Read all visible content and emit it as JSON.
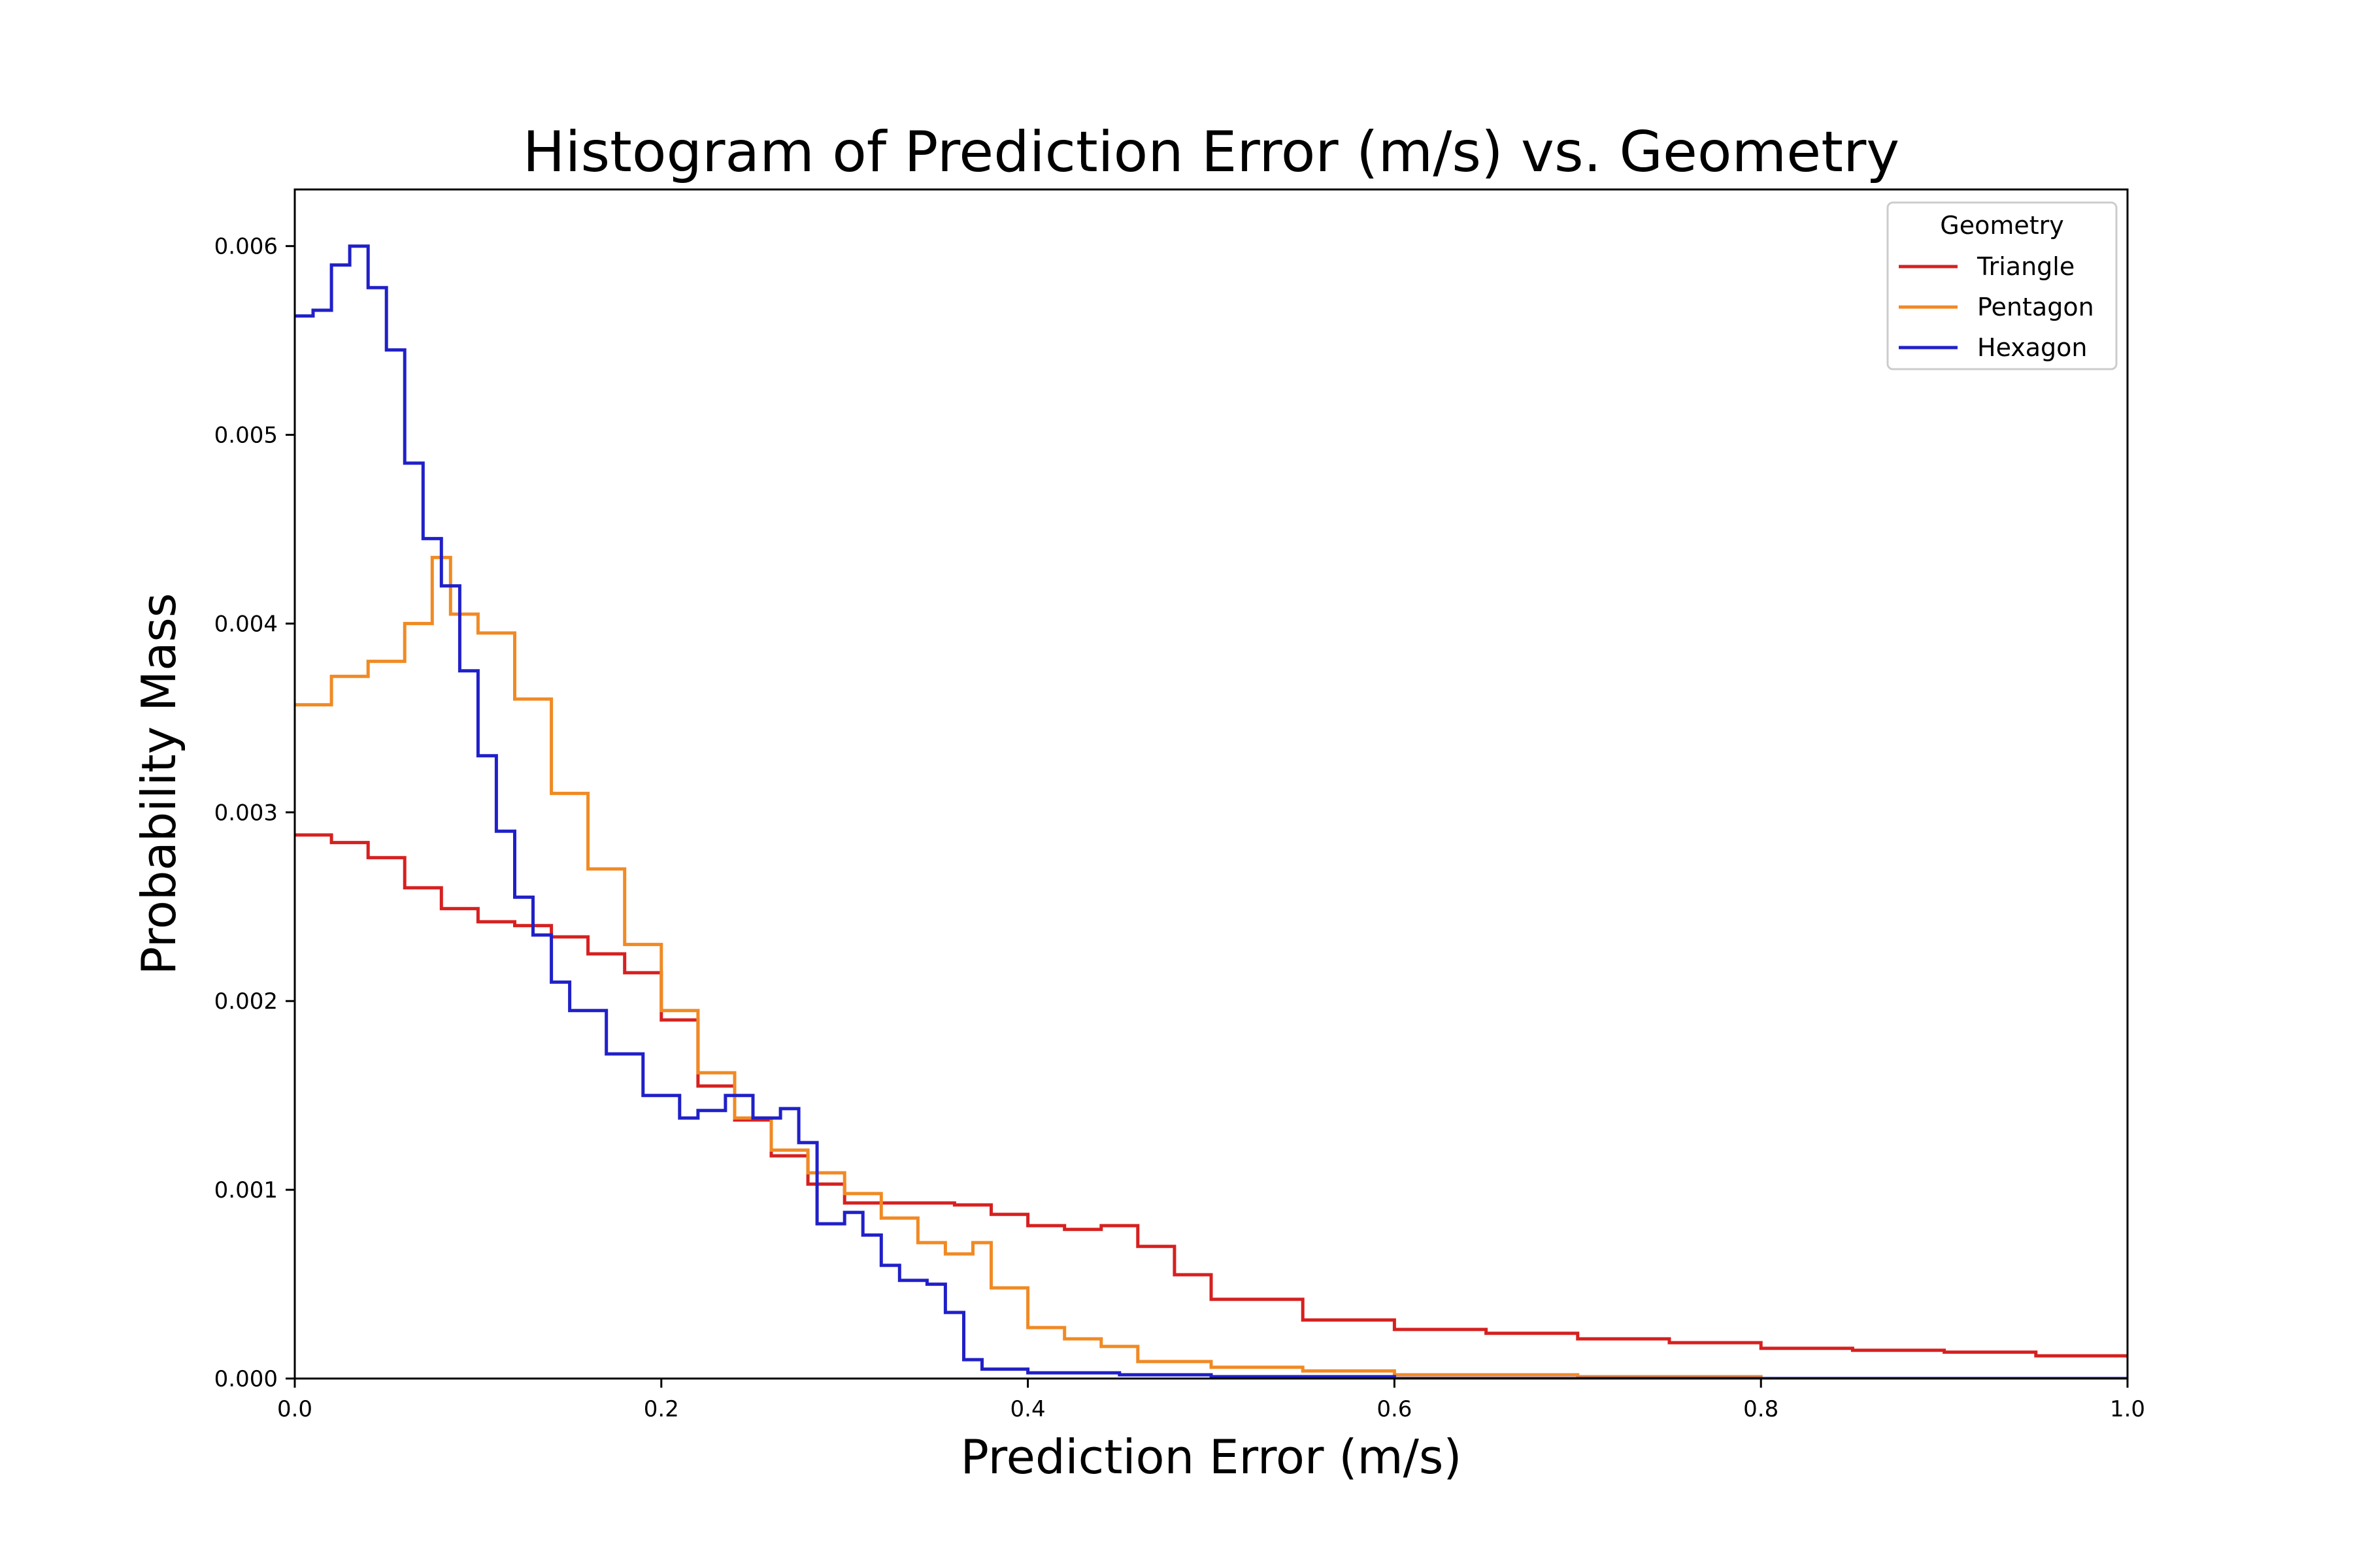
{
  "chart_data": {
    "type": "line",
    "title": "Histogram of Prediction Error (m/s) vs. Geometry",
    "xlabel": "Prediction Error (m/s)",
    "ylabel": "Probability Mass",
    "xlim": [
      0.0,
      1.0
    ],
    "ylim": [
      0.0,
      0.0063
    ],
    "x_ticks": [
      0.0,
      0.2,
      0.4,
      0.6,
      0.8,
      1.0
    ],
    "x_tick_labels": [
      "0.0",
      "0.2",
      "0.4",
      "0.6",
      "0.8",
      "1.0"
    ],
    "y_ticks": [
      0.0,
      0.001,
      0.002,
      0.003,
      0.004,
      0.005,
      0.006
    ],
    "y_tick_labels": [
      "0.000",
      "0.001",
      "0.002",
      "0.003",
      "0.004",
      "0.005",
      "0.006"
    ],
    "grid": false,
    "step": true,
    "legend": {
      "title": "Geometry",
      "position": "top-right"
    },
    "series": [
      {
        "name": "Triangle",
        "color": "#d62020",
        "x": [
          0.0,
          0.02,
          0.04,
          0.06,
          0.08,
          0.1,
          0.12,
          0.14,
          0.16,
          0.18,
          0.2,
          0.22,
          0.24,
          0.26,
          0.28,
          0.3,
          0.32,
          0.34,
          0.36,
          0.38,
          0.4,
          0.42,
          0.44,
          0.46,
          0.48,
          0.5,
          0.55,
          0.6,
          0.65,
          0.7,
          0.75,
          0.8,
          0.85,
          0.9,
          0.95,
          1.0
        ],
        "y": [
          0.00288,
          0.00284,
          0.00276,
          0.0026,
          0.00249,
          0.00242,
          0.0024,
          0.00234,
          0.00225,
          0.00215,
          0.0019,
          0.00155,
          0.00137,
          0.00118,
          0.00103,
          0.00093,
          0.00093,
          0.00093,
          0.00092,
          0.00087,
          0.00081,
          0.00079,
          0.00081,
          0.0007,
          0.00055,
          0.00042,
          0.00031,
          0.00026,
          0.00024,
          0.00021,
          0.00019,
          0.00016,
          0.00015,
          0.00014,
          0.00012,
          0.00011
        ]
      },
      {
        "name": "Pentagon",
        "color": "#f08a24",
        "x": [
          0.0,
          0.02,
          0.04,
          0.06,
          0.075,
          0.085,
          0.1,
          0.12,
          0.14,
          0.16,
          0.18,
          0.2,
          0.22,
          0.24,
          0.26,
          0.28,
          0.3,
          0.32,
          0.34,
          0.355,
          0.37,
          0.38,
          0.4,
          0.42,
          0.44,
          0.46,
          0.5,
          0.55,
          0.6,
          0.7,
          0.8,
          1.0
        ],
        "y": [
          0.00357,
          0.00372,
          0.0038,
          0.004,
          0.00435,
          0.00405,
          0.00395,
          0.0036,
          0.0031,
          0.0027,
          0.0023,
          0.00195,
          0.00162,
          0.00138,
          0.00121,
          0.00109,
          0.00098,
          0.00085,
          0.00072,
          0.00066,
          0.00072,
          0.00048,
          0.00027,
          0.00021,
          0.00017,
          9e-05,
          6e-05,
          4e-05,
          2e-05,
          1e-05,
          0.0,
          0.0
        ]
      },
      {
        "name": "Hexagon",
        "color": "#2020c8",
        "x": [
          0.0,
          0.01,
          0.02,
          0.03,
          0.04,
          0.05,
          0.06,
          0.07,
          0.08,
          0.09,
          0.1,
          0.11,
          0.12,
          0.13,
          0.14,
          0.15,
          0.17,
          0.19,
          0.21,
          0.22,
          0.235,
          0.25,
          0.265,
          0.275,
          0.285,
          0.3,
          0.31,
          0.32,
          0.33,
          0.345,
          0.355,
          0.365,
          0.375,
          0.4,
          0.45,
          0.5,
          0.6
        ],
        "y": [
          0.00563,
          0.00566,
          0.0059,
          0.006,
          0.00578,
          0.00545,
          0.00485,
          0.00445,
          0.0042,
          0.00375,
          0.0033,
          0.0029,
          0.00255,
          0.00235,
          0.0021,
          0.00195,
          0.00172,
          0.0015,
          0.00138,
          0.00142,
          0.0015,
          0.00138,
          0.00143,
          0.00125,
          0.00082,
          0.00088,
          0.00076,
          0.0006,
          0.00052,
          0.0005,
          0.00035,
          0.0001,
          5e-05,
          3e-05,
          2e-05,
          1e-05,
          0.0
        ]
      }
    ]
  }
}
